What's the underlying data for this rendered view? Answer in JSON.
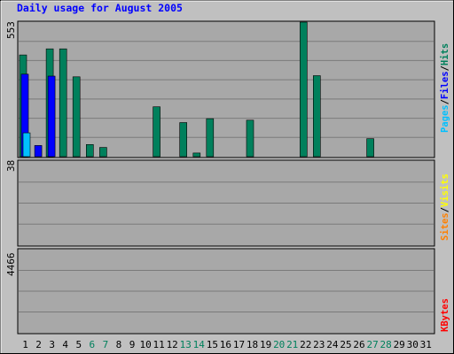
{
  "chart_data": {
    "type": "bar",
    "title": "Daily usage for August 2005",
    "categories": [
      "1",
      "2",
      "3",
      "4",
      "5",
      "6",
      "7",
      "8",
      "9",
      "10",
      "11",
      "12",
      "13",
      "14",
      "15",
      "16",
      "17",
      "18",
      "19",
      "20",
      "21",
      "22",
      "23",
      "24",
      "25",
      "26",
      "27",
      "28",
      "29",
      "30",
      "31"
    ],
    "weekend_days": [
      "6",
      "7",
      "13",
      "14",
      "20",
      "21",
      "27",
      "28"
    ],
    "grid": true,
    "panels": [
      {
        "name": "hits-files-pages",
        "ymax_label": "553",
        "ymax": 553,
        "series": [
          {
            "name": "Hits",
            "color": "#00805C",
            "values": [
              418,
              0,
              443,
              443,
              328,
              50,
              38,
              0,
              0,
              0,
              205,
              0,
              140,
              15,
              156,
              0,
              0,
              150,
              0,
              0,
              0,
              553,
              333,
              0,
              0,
              0,
              74,
              0,
              0,
              0,
              0
            ]
          },
          {
            "name": "Files",
            "color": "#0000FF",
            "values": [
              339,
              46,
              331,
              0,
              0,
              0,
              0,
              0,
              0,
              0,
              0,
              0,
              0,
              0,
              0,
              0,
              0,
              0,
              0,
              0,
              0,
              0,
              0,
              0,
              0,
              0,
              0,
              0,
              0,
              0,
              0
            ]
          },
          {
            "name": "Pages",
            "color": "#00C0FF",
            "values": [
              98,
              0,
              0,
              0,
              0,
              0,
              0,
              0,
              0,
              0,
              0,
              0,
              0,
              0,
              0,
              0,
              0,
              0,
              0,
              0,
              0,
              0,
              0,
              0,
              0,
              0,
              0,
              0,
              0,
              0,
              0
            ]
          }
        ]
      },
      {
        "name": "visits-sites",
        "ymax_label": "38",
        "ymax": 38,
        "series": [
          {
            "name": "Visits",
            "color": "#FFFF00",
            "values": []
          },
          {
            "name": "Sites",
            "color": "#FF8000",
            "values": []
          }
        ]
      },
      {
        "name": "kbytes",
        "ymax_label": "4466",
        "ymax": 4466,
        "series": [
          {
            "name": "KBytes",
            "color": "#FF0000",
            "values": []
          }
        ]
      }
    ]
  }
}
